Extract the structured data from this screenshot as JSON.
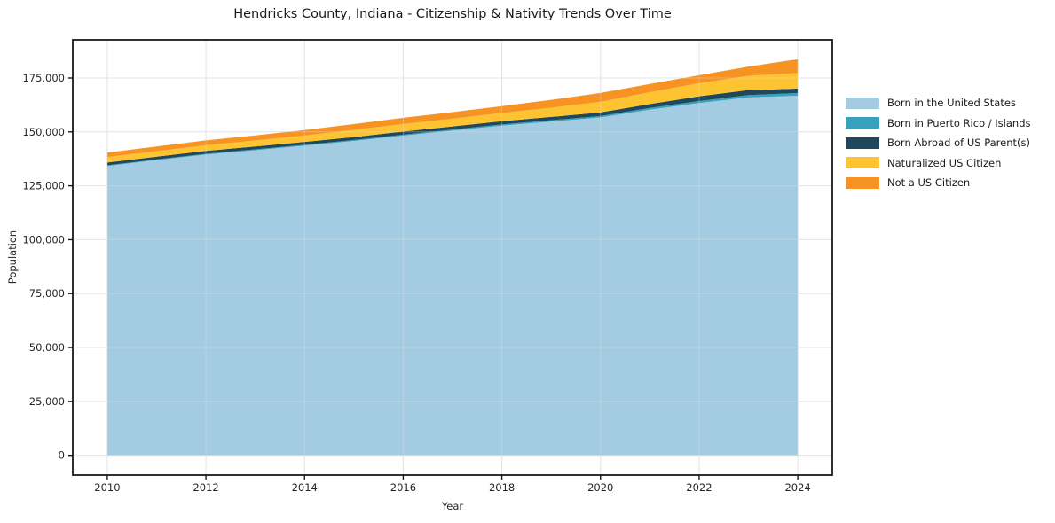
{
  "title": "Hendricks County, Indiana - Citizenship & Nativity Trends Over Time",
  "chart_data": {
    "type": "area",
    "stacked": true,
    "title": "Hendricks County, Indiana - Citizenship & Nativity Trends Over Time",
    "xlabel": "Year",
    "ylabel": "Population",
    "x": [
      2010,
      2011,
      2012,
      2013,
      2014,
      2015,
      2016,
      2017,
      2018,
      2019,
      2020,
      2021,
      2022,
      2023,
      2024
    ],
    "series": [
      {
        "name": "Born in the United States",
        "color": "#a3cce3",
        "values": [
          134200,
          136900,
          139500,
          141500,
          143600,
          145800,
          148300,
          150600,
          152900,
          154800,
          156700,
          160300,
          163400,
          166000,
          166800
        ]
      },
      {
        "name": "Born in Puerto Rico / Islands",
        "color": "#38a1bd",
        "values": [
          300,
          330,
          360,
          380,
          400,
          430,
          460,
          500,
          550,
          600,
          650,
          800,
          900,
          1100,
          1200
        ]
      },
      {
        "name": "Born Abroad of US Parent(s)",
        "color": "#20485c",
        "values": [
          1300,
          1300,
          1320,
          1350,
          1350,
          1400,
          1400,
          1450,
          1500,
          1550,
          1650,
          1800,
          2200,
          2300,
          2100
        ]
      },
      {
        "name": "Naturalized US Citizen",
        "color": "#fdc330",
        "values": [
          2500,
          2550,
          2650,
          2800,
          3000,
          3300,
          3500,
          3600,
          3800,
          4300,
          4950,
          5500,
          6100,
          6600,
          7200
        ]
      },
      {
        "name": "Not a US Citizen",
        "color": "#f79322",
        "values": [
          2100,
          2150,
          2250,
          2350,
          2500,
          2700,
          2900,
          3000,
          3200,
          3600,
          4100,
          3800,
          3700,
          4300,
          6400
        ]
      }
    ],
    "xticks": {
      "values": [
        2010,
        2012,
        2014,
        2016,
        2018,
        2020,
        2022,
        2024
      ],
      "labels": [
        "2010",
        "2012",
        "2014",
        "2016",
        "2018",
        "2020",
        "2022",
        "2024"
      ]
    },
    "yticks": {
      "values": [
        0,
        25000,
        50000,
        75000,
        100000,
        125000,
        150000,
        175000
      ],
      "labels": [
        "0",
        "25,000",
        "50,000",
        "75,000",
        "100,000",
        "125,000",
        "150,000",
        "175,000"
      ]
    },
    "xlim": [
      2009.3,
      2024.7
    ],
    "ylim": [
      -9175,
      192675
    ],
    "grid": true,
    "legend_position": "right-outside",
    "colors": {
      "grid": "#e7e7e7",
      "spine": "#1a1a1a",
      "tick_label": "#262626"
    }
  }
}
